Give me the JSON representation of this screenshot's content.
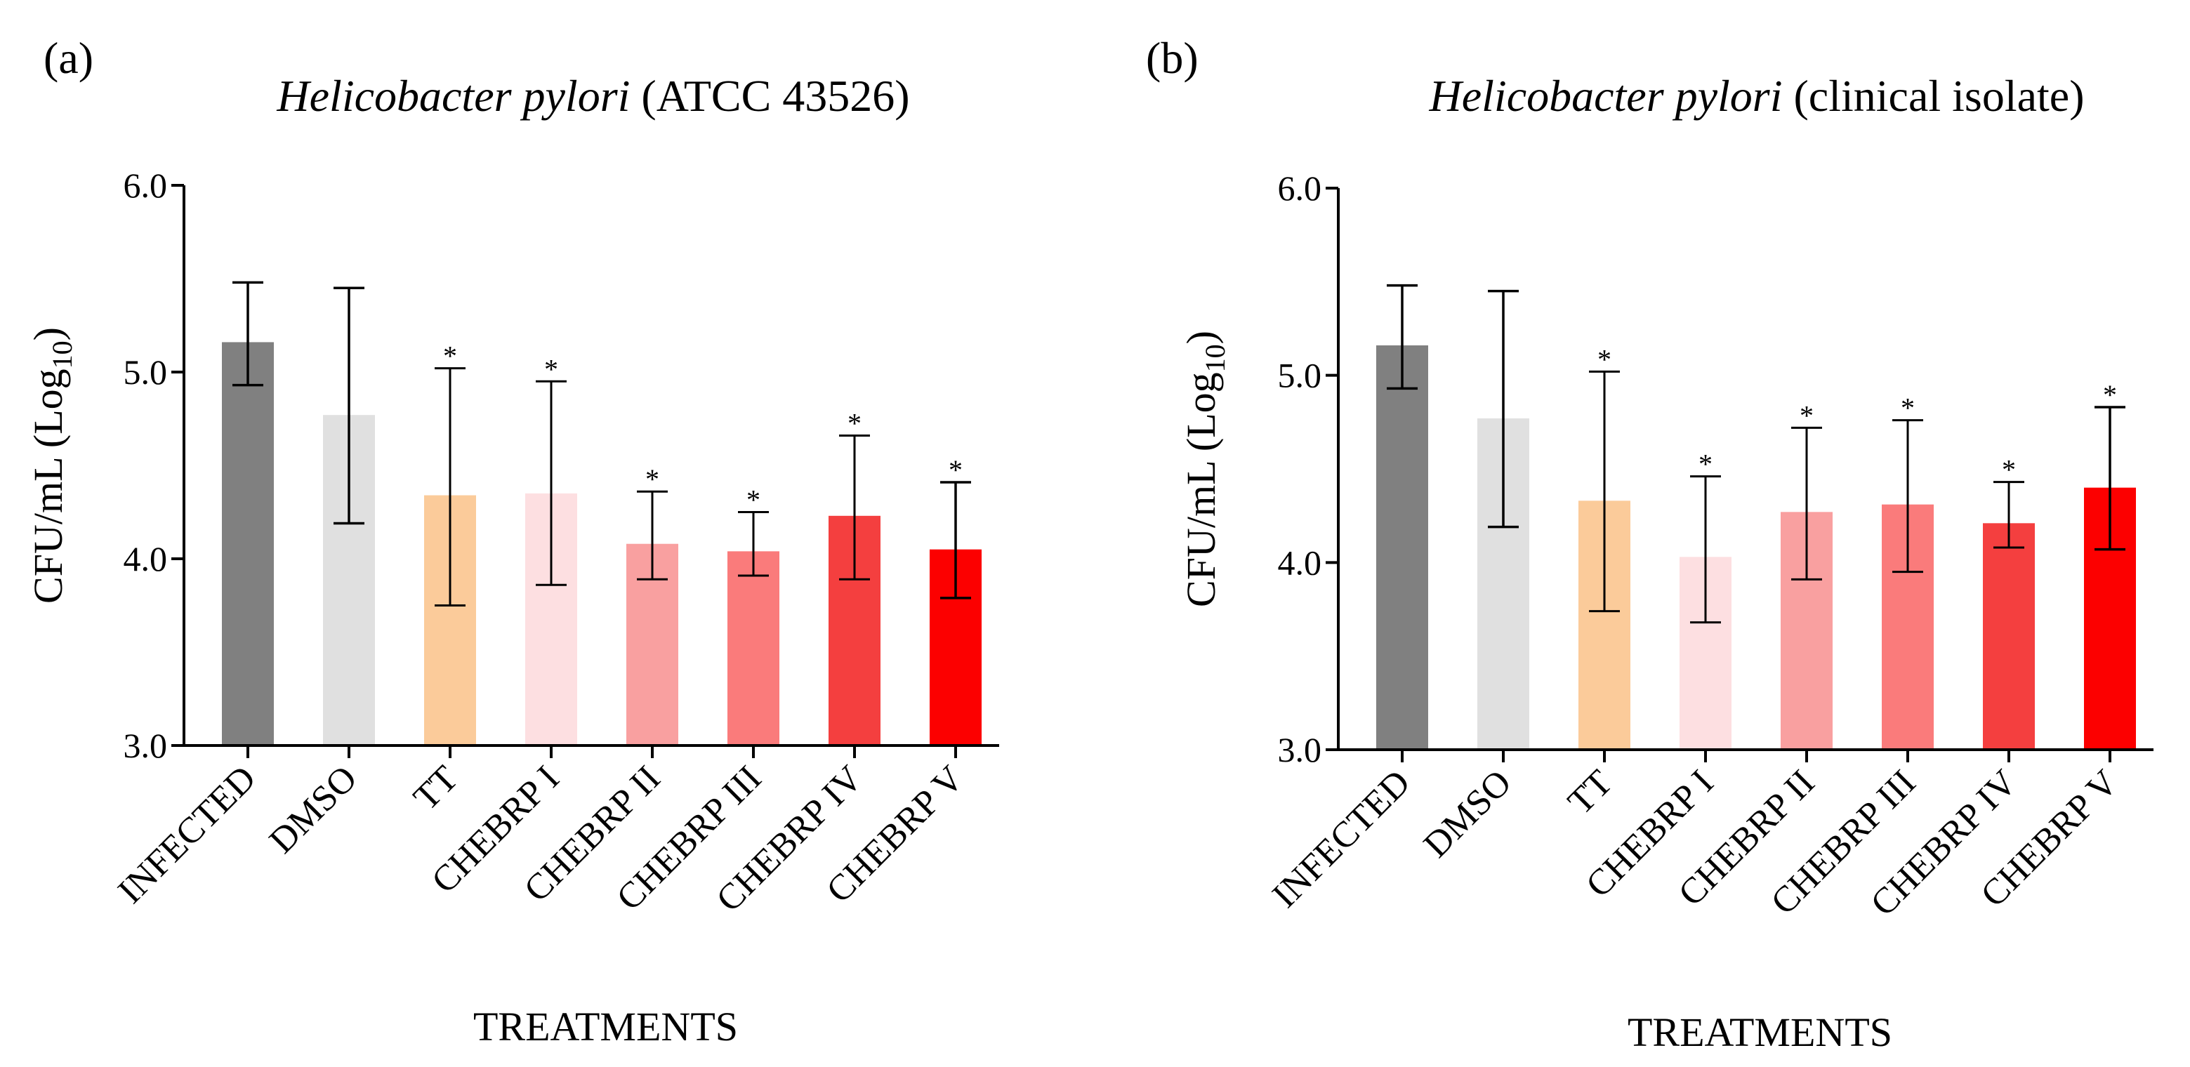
{
  "chart_data": [
    {
      "type": "bar",
      "panel_label": "(a)",
      "title_italic": "Helicobacter pylori",
      "title_rest": "(ATCC 43526)",
      "ylabel_main": "CFU/mL (Log",
      "ylabel_sub": "10",
      "ylabel_close": ")",
      "xlabel": "TREATMENTS",
      "ylim": [
        3.0,
        6.0
      ],
      "yticks": [
        "3.0",
        "4.0",
        "5.0",
        "6.0"
      ],
      "grid": false,
      "categories": [
        "INFECTED",
        "DMSO",
        "TT",
        "CHEBRP I",
        "CHEBRP II",
        "CHEBRP III",
        "CHEBRP IV",
        "CHEBRP V"
      ],
      "values": [
        5.16,
        4.77,
        4.34,
        4.35,
        4.08,
        4.04,
        4.23,
        4.05
      ],
      "error_low": [
        4.93,
        4.19,
        3.75,
        3.86,
        3.89,
        3.91,
        3.89,
        3.79
      ],
      "error_high": [
        5.48,
        5.45,
        5.02,
        4.95,
        4.36,
        4.25,
        4.66,
        4.41
      ],
      "significance": [
        "",
        "",
        "*",
        "*",
        "*",
        "*",
        "*",
        "*"
      ],
      "colors": [
        "#808080",
        "#e0e0e0",
        "#fbcb9a",
        "#fddfe1",
        "#f9a0a0",
        "#fa7b7b",
        "#f43f3f",
        "#fc0000"
      ]
    },
    {
      "type": "bar",
      "panel_label": "(b)",
      "title_italic": "Helicobacter pylori",
      "title_rest": "(clinical isolate)",
      "ylabel_main": "CFU/mL (Log",
      "ylabel_sub": "10",
      "ylabel_close": ")",
      "xlabel": "TREATMENTS",
      "ylim": [
        3.0,
        6.0
      ],
      "yticks": [
        "3.0",
        "4.0",
        "5.0",
        "6.0"
      ],
      "grid": false,
      "categories": [
        "INFECTED",
        "DMSO",
        "TT",
        "CHEBRP I",
        "CHEBRP II",
        "CHEBRP III",
        "CHEBRP IV",
        "CHEBRP V"
      ],
      "values": [
        5.16,
        4.77,
        4.33,
        4.03,
        4.27,
        4.31,
        4.21,
        4.4
      ],
      "error_low": [
        4.93,
        4.19,
        3.74,
        3.68,
        3.91,
        3.95,
        4.08,
        4.07
      ],
      "error_high": [
        5.48,
        5.45,
        5.02,
        4.46,
        4.72,
        4.76,
        4.43,
        4.83
      ],
      "significance": [
        "",
        "",
        "*",
        "*",
        "*",
        "*",
        "*",
        "*"
      ],
      "colors": [
        "#808080",
        "#e0e0e0",
        "#fbcb9a",
        "#fddfe1",
        "#f9a0a0",
        "#fa7b7b",
        "#f43f3f",
        "#fc0000"
      ]
    }
  ]
}
